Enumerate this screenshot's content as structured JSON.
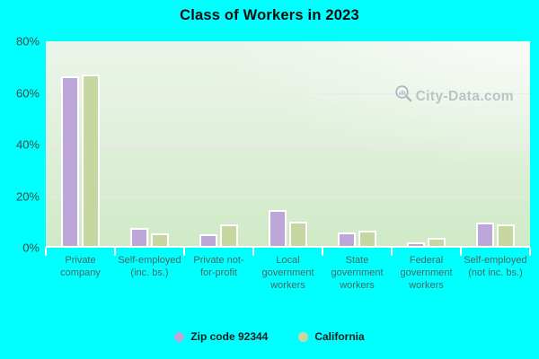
{
  "title": "Class of Workers in 2023",
  "watermark": {
    "text": "City-Data.com"
  },
  "colors": {
    "background": "#00ffff",
    "bar_zip": "#bda7d8",
    "bar_state": "#c6d7a1",
    "bar_border": "#ffffff",
    "plot_top": "#ecf5ea",
    "plot_bottom": "#cfeac6",
    "gridline": "#f6e2ee",
    "axis_text": "#3d4b4b",
    "category_text": "#4e6464",
    "watermark_text": "#a9b2b4"
  },
  "legend": [
    {
      "label": "Zip code 92344",
      "color": "#bda7d8"
    },
    {
      "label": "California",
      "color": "#c6d7a1"
    }
  ],
  "chart_data": {
    "type": "bar",
    "title": "Class of Workers in 2023",
    "categories": [
      "Private company",
      "Self-employed (inc. bs.)",
      "Private not-for-profit",
      "Local government workers",
      "State government workers",
      "Federal government workers",
      "Self-employed (not inc. bs.)"
    ],
    "series": [
      {
        "name": "Zip code 92344",
        "color": "#bda7d8",
        "values": [
          64.9,
          6.2,
          3.7,
          13.1,
          4.5,
          0.8,
          8.3
        ]
      },
      {
        "name": "California",
        "color": "#c6d7a1",
        "values": [
          65.8,
          4.3,
          7.8,
          8.6,
          5.1,
          2.3,
          7.5
        ]
      }
    ],
    "xlabel": "",
    "ylabel": "",
    "ylim": [
      0,
      80
    ],
    "y_ticks": [
      0,
      20,
      40,
      60,
      80
    ],
    "y_tick_format": "percent",
    "grid": true,
    "legend_position": "bottom"
  }
}
